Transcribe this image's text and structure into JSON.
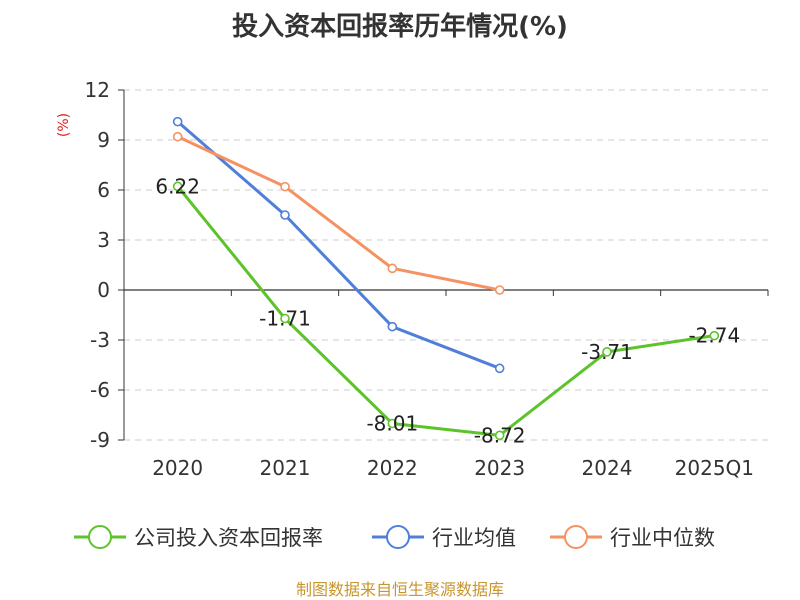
{
  "title": "投入资本回报率历年情况(%)",
  "source": "制图数据来自恒生聚源数据库",
  "chart_data": {
    "type": "line",
    "title": "投入资本回报率历年情况(%)",
    "ylabel": "(%)",
    "categories": [
      "2020",
      "2021",
      "2022",
      "2023",
      "2024",
      "2025Q1"
    ],
    "yticks": [
      12,
      9,
      6,
      3,
      0,
      -3,
      -6,
      -9
    ],
    "ylim": [
      -9,
      12
    ],
    "grid": "horizontal-dashed",
    "legend_position": "bottom",
    "series": [
      {
        "name": "公司投入资本回报率",
        "color": "#5dc32a",
        "values": [
          6.22,
          -1.71,
          -8.01,
          -8.72,
          -3.71,
          -2.74
        ],
        "labels": [
          "6.22",
          "-1.71",
          "-8.01",
          "-8.72",
          "-3.71",
          "-2.74"
        ]
      },
      {
        "name": "行业均值",
        "color": "#4f7fd9",
        "values": [
          10.1,
          4.5,
          -2.2,
          -4.7,
          null,
          null
        ]
      },
      {
        "name": "行业中位数",
        "color": "#f59262",
        "values": [
          9.2,
          6.2,
          1.3,
          0.0,
          null,
          null
        ]
      }
    ]
  }
}
